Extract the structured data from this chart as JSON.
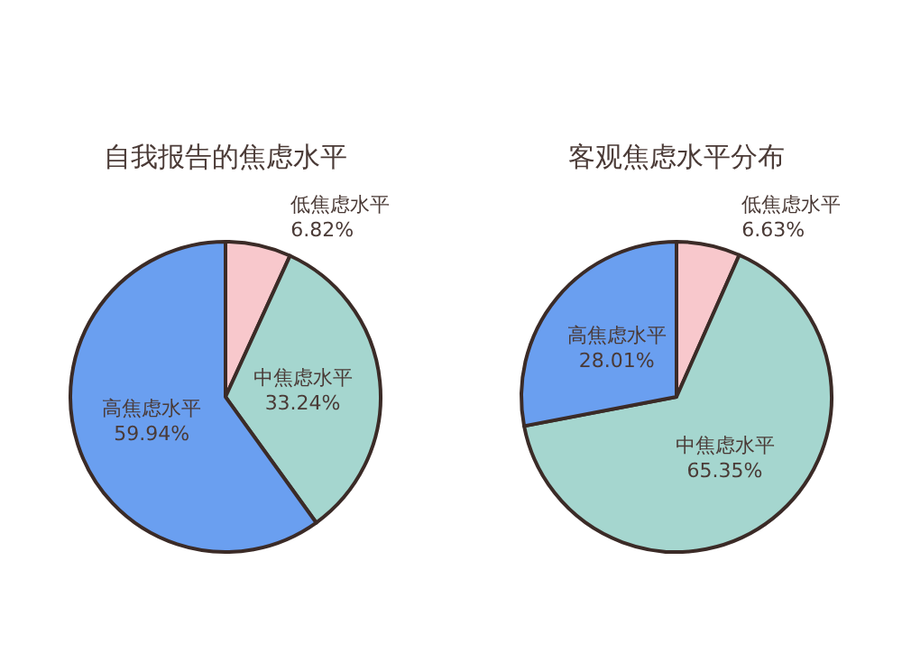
{
  "chart_data": [
    {
      "type": "pie",
      "title": "自我报告的焦虑水平",
      "categories": [
        "低焦虑水平",
        "中焦虑水平",
        "高焦虑水平"
      ],
      "values": [
        6.82,
        33.24,
        59.94
      ],
      "value_labels": [
        "6.82%",
        "33.24%",
        "59.94%"
      ],
      "colors": [
        "#f8c8cc",
        "#a5d6cf",
        "#6a9ff0"
      ]
    },
    {
      "type": "pie",
      "title": "客观焦虑水平分布",
      "categories": [
        "低焦虑水平",
        "中焦虑水平",
        "高焦虑水平"
      ],
      "values": [
        6.63,
        65.35,
        28.01
      ],
      "value_labels": [
        "6.63%",
        "65.35%",
        "28.01%"
      ],
      "colors": [
        "#f8c8cc",
        "#a5d6cf",
        "#6a9ff0"
      ]
    }
  ]
}
